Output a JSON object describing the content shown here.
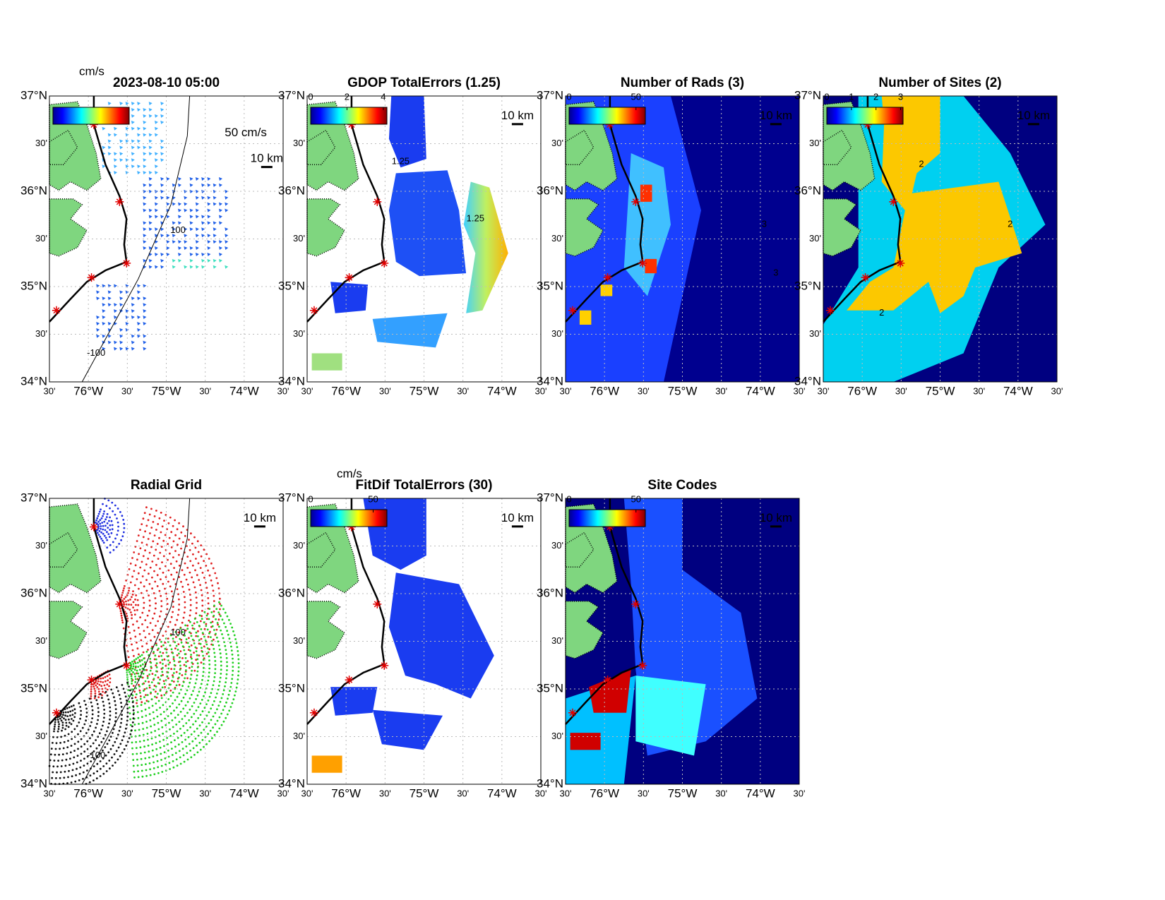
{
  "lat_labels": [
    "37°N",
    "30'",
    "36°N",
    "30'",
    "35°N",
    "30'",
    "34°N"
  ],
  "lon_labels": [
    "30'",
    "76°W",
    "30'",
    "75°W",
    "30'",
    "74°W",
    "30'"
  ],
  "panels": [
    {
      "title": "2023-08-10 05:00",
      "colorbar": {
        "unit": "cm/s"
      },
      "annotations": [
        "50 cm/s",
        "10 km",
        "100",
        "-100"
      ]
    },
    {
      "title": "GDOP TotalErrors (1.25)",
      "colorbar": {
        "ticks": [
          0,
          2,
          4
        ],
        "clim": [
          0,
          4.2
        ]
      },
      "annotations": [
        "10 km",
        "1.25",
        "1.25"
      ]
    },
    {
      "title": "Number of Rads (3)",
      "colorbar": {
        "ticks": [
          0,
          50
        ],
        "clim": [
          0,
          57
        ]
      },
      "annotations": [
        "10 km",
        "3",
        "3"
      ]
    },
    {
      "title": "Number of Sites (2)",
      "colorbar": {
        "ticks": [
          0,
          1,
          2,
          3
        ],
        "clim": [
          0,
          3.1
        ]
      },
      "annotations": [
        "10 km",
        "2",
        "2",
        "2"
      ]
    },
    {
      "title": "Radial Grid",
      "annotations": [
        "10 km",
        "100",
        "-100"
      ]
    },
    {
      "title": "FitDif TotalErrors (30)",
      "colorbar": {
        "unit": "cm/s",
        "ticks": [
          0,
          50
        ],
        "clim": [
          0,
          61
        ]
      },
      "annotations": [
        "10 km"
      ]
    },
    {
      "title": "Site Codes",
      "colorbar": {
        "ticks": [
          0,
          50
        ],
        "clim": [
          0,
          57
        ]
      },
      "annotations": [
        "10 km"
      ]
    }
  ]
}
